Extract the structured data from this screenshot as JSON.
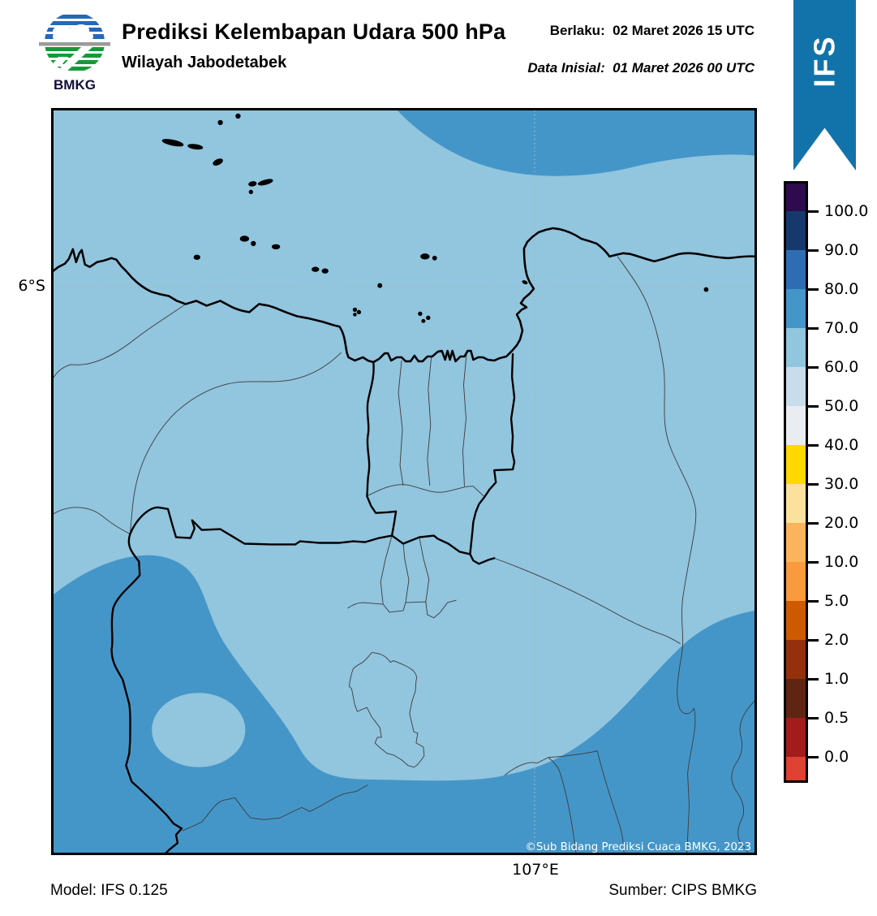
{
  "header": {
    "title": "Prediksi Kelembapan Udara 500 hPa",
    "subtitle": "Wilayah Jabodetabek",
    "valid_line": "Berlaku:  02 Maret 2026 15 UTC",
    "initial_line": "Data Inisial:  01 Maret 2026 00 UTC",
    "logo_text": "BMKG"
  },
  "banner": {
    "label": "IFS",
    "color": "#1273ab"
  },
  "map": {
    "lat_label": "6°S",
    "lon_label": "107°E",
    "copyright": "©Sub Bidang Prediksi Cuaca BMKG, 2023",
    "base_color": "#92c5de",
    "band_color": "#4596c8"
  },
  "colorbar": {
    "tick_labels": [
      "100.0",
      "90.0",
      "80.0",
      "70.0",
      "60.0",
      "50.0",
      "40.0",
      "30.0",
      "20.0",
      "10.0",
      "5.0",
      "2.0",
      "1.0",
      "0.5",
      "0.0"
    ],
    "colors": [
      "#2e0b4e",
      "#17386d",
      "#2e6db4",
      "#4596c8",
      "#92c5de",
      "#c9dcec",
      "#e9ecf1",
      "#ffd800",
      "#fbe19c",
      "#fbb35c",
      "#f89a3d",
      "#cd5a00",
      "#94310c",
      "#5f2512",
      "#a31c1c",
      "#df4132"
    ]
  },
  "footer": {
    "model": "Model: IFS 0.125",
    "source": "Sumber: CIPS BMKG"
  },
  "chart_data": {
    "type": "heatmap",
    "title": "Prediksi Kelembapan Udara 500 hPa",
    "region": "Wilayah Jabodetabek",
    "colorbar_boundaries": [
      0.0,
      0.5,
      1.0,
      2.0,
      5.0,
      10.0,
      20.0,
      30.0,
      40.0,
      50.0,
      60.0,
      70.0,
      80.0,
      90.0,
      100.0
    ],
    "visible_levels": {
      "map_background_band": "60-70",
      "darker_blue_band": "70-80"
    },
    "gridlines": {
      "latitude": "6°S",
      "longitude": "107°E"
    },
    "legend_position": "right"
  }
}
